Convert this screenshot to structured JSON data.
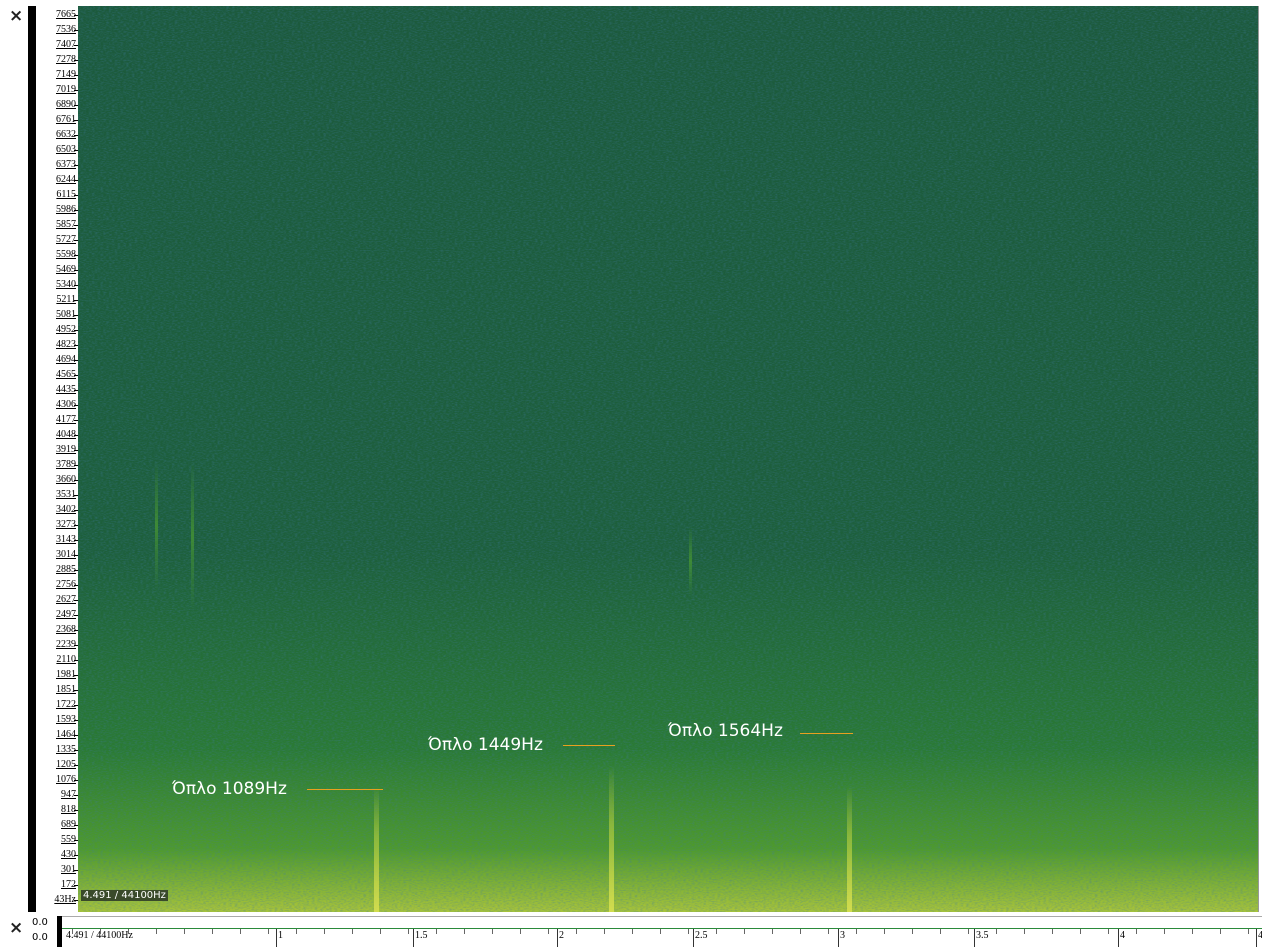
{
  "close_top": "×",
  "close_bottom": "×",
  "frequency_axis": {
    "labels": [
      "7665",
      "7536",
      "7407",
      "7278",
      "7149",
      "7019",
      "6890",
      "6761",
      "6632",
      "6503",
      "6373",
      "6244",
      "6115",
      "5986",
      "5857",
      "5727",
      "5598",
      "5469",
      "5340",
      "5211",
      "5081",
      "4952",
      "4823",
      "4694",
      "4565",
      "4435",
      "4306",
      "4177",
      "4048",
      "3919",
      "3789",
      "3660",
      "3531",
      "3402",
      "3273",
      "3143",
      "3014",
      "2885",
      "2756",
      "2627",
      "2497",
      "2368",
      "2239",
      "2110",
      "1981",
      "1851",
      "1722",
      "1593",
      "1464",
      "1335",
      "1205",
      "1076",
      "947",
      "818",
      "689",
      "559",
      "430",
      "301",
      "172",
      "43Hz"
    ]
  },
  "level_labels": [
    "0.0",
    "0.0"
  ],
  "status": "4.491 / 44100Hz",
  "time_axis": {
    "position_label": "4.491 / 44100Hz",
    "labels": [
      "1",
      "1.5",
      "2",
      "2.5",
      "3",
      "3.5",
      "4",
      "4"
    ]
  },
  "annotations": [
    "Όπλο 1089Hz",
    "Όπλο 1449Hz",
    "Όπλο 1564Hz"
  ]
}
